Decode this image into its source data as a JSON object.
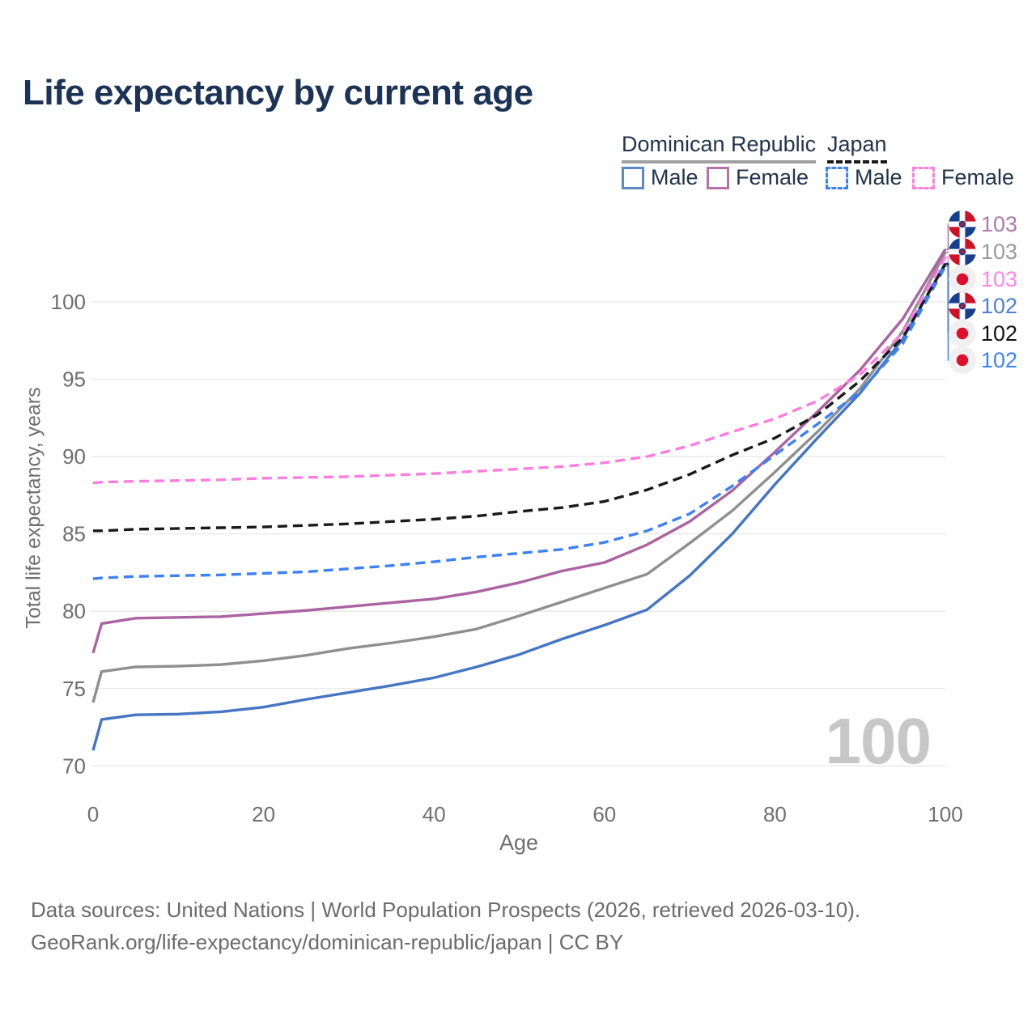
{
  "title": "Life expectancy by current age",
  "watermark": "100",
  "legend": {
    "groups": [
      {
        "label": "Dominican Republic",
        "underline_style": "solid",
        "underline_color": "#a0a0a0"
      },
      {
        "label": "Japan",
        "underline_style": "dashed",
        "underline_color": "#1a1a1a"
      }
    ],
    "items": [
      {
        "label": "Male",
        "swatch_color": "#5b8ac5",
        "swatch_style": "solid"
      },
      {
        "label": "Female",
        "swatch_color": "#b573aa",
        "swatch_style": "solid"
      },
      {
        "label": "Male",
        "swatch_color": "#3d82f4",
        "swatch_style": "dashed"
      },
      {
        "label": "Female",
        "swatch_color": "#ff7ce0",
        "swatch_style": "dashed"
      }
    ]
  },
  "footer": {
    "line1": "Data sources: United Nations | World Population Prospects (2026, retrieved 2026-03-10).",
    "line2": "GeoRank.org/life-expectancy/dominican-republic/japan | CC BY"
  },
  "chart_data": {
    "type": "line",
    "title": "Life expectancy by current age",
    "xlabel": "Age",
    "ylabel": "Total life expectancy, years",
    "xlim": [
      0,
      100
    ],
    "ylim": [
      68.5,
      104.5
    ],
    "xticks": [
      0,
      20,
      40,
      60,
      80,
      100
    ],
    "yticks": [
      70,
      75,
      80,
      85,
      90,
      95,
      100
    ],
    "grid": "horizontal",
    "legend_position": "top-right",
    "ages": [
      0,
      1,
      5,
      10,
      15,
      20,
      25,
      30,
      35,
      40,
      45,
      50,
      55,
      60,
      65,
      70,
      75,
      80,
      85,
      90,
      95,
      100
    ],
    "series": [
      {
        "name": "Dominican Republic Male",
        "country": "Dominican Republic",
        "sex": "Male",
        "color": "#4575c4",
        "dash": "solid",
        "values": [
          71.0,
          73.0,
          73.3,
          73.35,
          73.5,
          73.8,
          74.3,
          74.75,
          75.2,
          75.7,
          76.4,
          77.2,
          78.2,
          79.1,
          80.1,
          82.3,
          85.0,
          88.2,
          91.2,
          94.1,
          97.6,
          102.5
        ]
      },
      {
        "name": "Dominican Republic Total",
        "country": "Dominican Republic",
        "sex": "Both sexes",
        "color": "#8f8f8f",
        "dash": "solid",
        "values": [
          74.1,
          76.1,
          76.4,
          76.45,
          76.55,
          76.8,
          77.15,
          77.6,
          77.95,
          78.35,
          78.85,
          79.7,
          80.6,
          81.5,
          82.4,
          84.4,
          86.5,
          89.0,
          91.6,
          94.4,
          98.1,
          103.2
        ]
      },
      {
        "name": "Dominican Republic Female",
        "country": "Dominican Republic",
        "sex": "Female",
        "color": "#ab63a1",
        "dash": "solid",
        "values": [
          77.3,
          79.2,
          79.55,
          79.6,
          79.65,
          79.85,
          80.05,
          80.3,
          80.55,
          80.8,
          81.25,
          81.85,
          82.6,
          83.15,
          84.3,
          85.8,
          87.8,
          90.3,
          92.9,
          95.6,
          98.9,
          103.4
        ]
      },
      {
        "name": "Japan Male",
        "country": "Japan",
        "sex": "Male",
        "color": "#3d82f4",
        "dash": "dashed",
        "values": [
          82.1,
          82.15,
          82.25,
          82.3,
          82.35,
          82.45,
          82.55,
          82.75,
          82.95,
          83.2,
          83.5,
          83.75,
          84.0,
          84.45,
          85.2,
          86.3,
          88.1,
          90.1,
          92.1,
          94.2,
          97.3,
          102.3
        ]
      },
      {
        "name": "Japan Total",
        "country": "Japan",
        "sex": "Both sexes",
        "color": "#1a1a1a",
        "dash": "dashed",
        "values": [
          85.2,
          85.2,
          85.3,
          85.35,
          85.4,
          85.45,
          85.55,
          85.65,
          85.8,
          85.95,
          86.15,
          86.45,
          86.7,
          87.1,
          87.85,
          88.85,
          90.1,
          91.2,
          92.7,
          94.9,
          97.7,
          102.45
        ]
      },
      {
        "name": "Japan Female",
        "country": "Japan",
        "sex": "Female",
        "color": "#ff7ce0",
        "dash": "dashed",
        "values": [
          88.3,
          88.35,
          88.4,
          88.45,
          88.5,
          88.6,
          88.65,
          88.7,
          88.8,
          88.9,
          89.05,
          89.2,
          89.35,
          89.6,
          90.0,
          90.7,
          91.6,
          92.45,
          93.6,
          95.3,
          98.0,
          102.9
        ]
      }
    ],
    "end_labels": [
      {
        "value": "103",
        "flag": "dominican-republic",
        "color": "#a87aa5",
        "series": "Dominican Republic Female"
      },
      {
        "value": "103",
        "flag": "dominican-republic",
        "color": "#9a9a9a",
        "series": "Dominican Republic Total"
      },
      {
        "value": "103",
        "flag": "japan",
        "color": "#ff85e8",
        "series": "Japan Female"
      },
      {
        "value": "102",
        "flag": "dominican-republic",
        "color": "#4f7fd0",
        "series": "Dominican Republic Male"
      },
      {
        "value": "102",
        "flag": "japan",
        "color": "#111111",
        "series": "Japan Total"
      },
      {
        "value": "102",
        "flag": "japan",
        "color": "#3d82f4",
        "series": "Japan Male"
      }
    ]
  }
}
